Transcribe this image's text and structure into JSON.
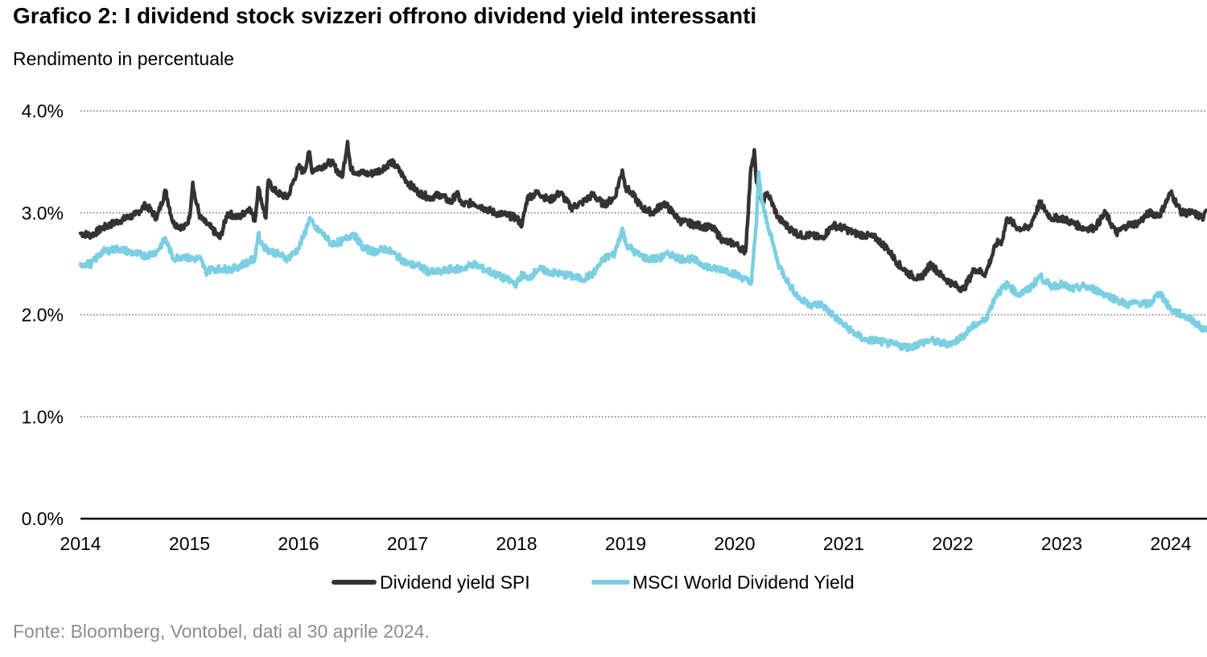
{
  "title": "Grafico 2: I dividend stock svizzeri offrono dividend yield interessanti",
  "source": "Fonte: Bloomberg, Vontobel, dati al 30 aprile 2024.",
  "chart_data": {
    "type": "line",
    "title": "Grafico 2: I dividend stock svizzeri offrono dividend yield interessanti",
    "ylabel": "Rendimento in percentuale",
    "xlabel": "",
    "x_ticks": [
      2014,
      2015,
      2016,
      2017,
      2018,
      2019,
      2020,
      2021,
      2022,
      2023,
      2024
    ],
    "y_ticks": [
      "0.0%",
      "1.0%",
      "2.0%",
      "3.0%",
      "4.0%"
    ],
    "y_tick_values": [
      0,
      1,
      2,
      3,
      4
    ],
    "xlim": [
      2014,
      2024.33
    ],
    "ylim": [
      0,
      4
    ],
    "grid": "horizontal dotted",
    "legend_position": "bottom-center",
    "series": [
      {
        "name": "Dividend yield SPI",
        "color": "#333333",
        "x": [
          2014.0,
          2014.1,
          2014.2,
          2014.35,
          2014.5,
          2014.6,
          2014.7,
          2014.78,
          2014.85,
          2014.95,
          2015.0,
          2015.03,
          2015.05,
          2015.1,
          2015.2,
          2015.28,
          2015.35,
          2015.45,
          2015.55,
          2015.6,
          2015.63,
          2015.7,
          2015.72,
          2015.8,
          2015.9,
          2016.0,
          2016.05,
          2016.1,
          2016.12,
          2016.2,
          2016.3,
          2016.4,
          2016.45,
          2016.48,
          2016.55,
          2016.65,
          2016.75,
          2016.85,
          2016.9,
          2017.0,
          2017.1,
          2017.2,
          2017.3,
          2017.4,
          2017.45,
          2017.5,
          2017.6,
          2017.7,
          2017.8,
          2017.9,
          2018.0,
          2018.05,
          2018.1,
          2018.2,
          2018.3,
          2018.4,
          2018.5,
          2018.6,
          2018.7,
          2018.8,
          2018.9,
          2018.97,
          2019.0,
          2019.05,
          2019.15,
          2019.25,
          2019.35,
          2019.5,
          2019.65,
          2019.8,
          2019.9,
          2020.0,
          2020.1,
          2020.15,
          2020.18,
          2020.2,
          2020.25,
          2020.3,
          2020.4,
          2020.5,
          2020.6,
          2020.7,
          2020.8,
          2020.9,
          2021.0,
          2021.1,
          2021.2,
          2021.3,
          2021.4,
          2021.5,
          2021.6,
          2021.7,
          2021.8,
          2021.9,
          2022.0,
          2022.1,
          2022.2,
          2022.3,
          2022.4,
          2022.45,
          2022.5,
          2022.6,
          2022.7,
          2022.8,
          2022.9,
          2023.0,
          2023.1,
          2023.2,
          2023.3,
          2023.4,
          2023.5,
          2023.6,
          2023.7,
          2023.75,
          2023.8,
          2023.9,
          2024.0,
          2024.1,
          2024.2,
          2024.3,
          2024.33
        ],
        "values": [
          2.8,
          2.78,
          2.85,
          2.92,
          2.98,
          3.08,
          2.95,
          3.22,
          2.9,
          2.85,
          2.95,
          3.3,
          3.15,
          2.95,
          2.85,
          2.75,
          3.0,
          2.95,
          3.05,
          2.92,
          3.25,
          2.95,
          3.3,
          3.2,
          3.15,
          3.45,
          3.4,
          3.6,
          3.42,
          3.45,
          3.5,
          3.35,
          3.7,
          3.42,
          3.4,
          3.38,
          3.42,
          3.5,
          3.45,
          3.3,
          3.2,
          3.15,
          3.18,
          3.1,
          3.2,
          3.08,
          3.1,
          3.05,
          3.0,
          2.98,
          2.95,
          2.88,
          3.15,
          3.2,
          3.12,
          3.2,
          3.05,
          3.1,
          3.18,
          3.08,
          3.15,
          3.42,
          3.25,
          3.2,
          3.05,
          3.0,
          3.1,
          2.92,
          2.88,
          2.85,
          2.72,
          2.7,
          2.62,
          3.45,
          3.62,
          3.3,
          3.1,
          3.2,
          2.95,
          2.85,
          2.78,
          2.78,
          2.75,
          2.88,
          2.85,
          2.8,
          2.78,
          2.75,
          2.65,
          2.5,
          2.4,
          2.35,
          2.5,
          2.38,
          2.3,
          2.25,
          2.45,
          2.4,
          2.7,
          2.72,
          2.95,
          2.85,
          2.85,
          3.1,
          2.95,
          2.95,
          2.9,
          2.85,
          2.85,
          3.0,
          2.8,
          2.88,
          2.9,
          2.95,
          3.0,
          2.98,
          3.2,
          3.0,
          3.0,
          2.95,
          3.02
        ]
      },
      {
        "name": "MSCI World Dividend Yield",
        "color": "#7ccfe3",
        "x": [
          2014.0,
          2014.1,
          2014.2,
          2014.35,
          2014.5,
          2014.6,
          2014.7,
          2014.78,
          2014.85,
          2014.95,
          2015.0,
          2015.1,
          2015.15,
          2015.2,
          2015.3,
          2015.4,
          2015.5,
          2015.6,
          2015.63,
          2015.65,
          2015.7,
          2015.8,
          2015.9,
          2016.0,
          2016.05,
          2016.1,
          2016.15,
          2016.2,
          2016.3,
          2016.4,
          2016.5,
          2016.6,
          2016.7,
          2016.8,
          2016.9,
          2017.0,
          2017.1,
          2017.2,
          2017.3,
          2017.4,
          2017.5,
          2017.6,
          2017.7,
          2017.8,
          2017.9,
          2018.0,
          2018.05,
          2018.1,
          2018.2,
          2018.3,
          2018.4,
          2018.5,
          2018.6,
          2018.7,
          2018.8,
          2018.9,
          2018.97,
          2019.0,
          2019.1,
          2019.2,
          2019.3,
          2019.4,
          2019.5,
          2019.6,
          2019.7,
          2019.8,
          2019.9,
          2020.0,
          2020.1,
          2020.15,
          2020.2,
          2020.22,
          2020.25,
          2020.3,
          2020.4,
          2020.5,
          2020.6,
          2020.7,
          2020.8,
          2020.9,
          2021.0,
          2021.1,
          2021.2,
          2021.3,
          2021.4,
          2021.5,
          2021.6,
          2021.7,
          2021.8,
          2021.9,
          2022.0,
          2022.1,
          2022.2,
          2022.3,
          2022.4,
          2022.5,
          2022.6,
          2022.7,
          2022.8,
          2022.9,
          2023.0,
          2023.1,
          2023.2,
          2023.3,
          2023.4,
          2023.5,
          2023.6,
          2023.7,
          2023.8,
          2023.9,
          2024.0,
          2024.1,
          2024.2,
          2024.3,
          2024.33
        ],
        "values": [
          2.5,
          2.5,
          2.62,
          2.65,
          2.6,
          2.58,
          2.62,
          2.75,
          2.55,
          2.58,
          2.55,
          2.55,
          2.42,
          2.45,
          2.45,
          2.45,
          2.5,
          2.55,
          2.8,
          2.72,
          2.65,
          2.6,
          2.55,
          2.65,
          2.78,
          2.95,
          2.85,
          2.82,
          2.7,
          2.72,
          2.8,
          2.65,
          2.62,
          2.65,
          2.58,
          2.5,
          2.48,
          2.42,
          2.42,
          2.45,
          2.45,
          2.5,
          2.45,
          2.4,
          2.35,
          2.3,
          2.4,
          2.35,
          2.45,
          2.42,
          2.4,
          2.38,
          2.35,
          2.4,
          2.55,
          2.6,
          2.85,
          2.7,
          2.6,
          2.55,
          2.55,
          2.6,
          2.55,
          2.55,
          2.5,
          2.45,
          2.45,
          2.4,
          2.35,
          2.3,
          2.9,
          3.4,
          3.1,
          2.9,
          2.5,
          2.3,
          2.15,
          2.1,
          2.1,
          2.0,
          1.9,
          1.82,
          1.75,
          1.75,
          1.72,
          1.7,
          1.68,
          1.72,
          1.75,
          1.72,
          1.72,
          1.8,
          1.9,
          1.95,
          2.2,
          2.3,
          2.2,
          2.25,
          2.38,
          2.28,
          2.3,
          2.25,
          2.28,
          2.25,
          2.2,
          2.15,
          2.1,
          2.12,
          2.1,
          2.22,
          2.05,
          2.0,
          1.95,
          1.85,
          1.88
        ]
      }
    ]
  }
}
